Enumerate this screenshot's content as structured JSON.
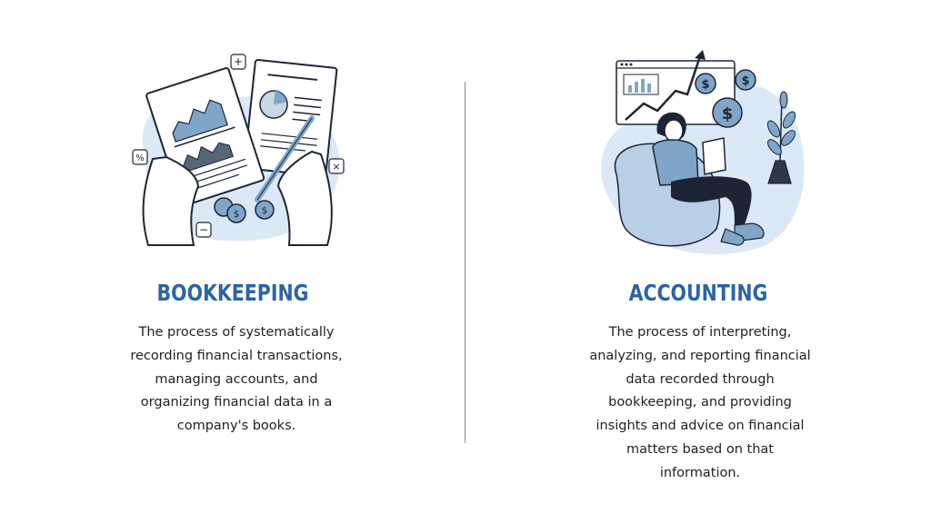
{
  "bookkeeping": {
    "title": "BOOKKEEPING",
    "description": "The process of systematically recording financial transactions, managing accounts, and organizing financial data in a company's books."
  },
  "accounting": {
    "title": "ACCOUNTING",
    "description": "The process of interpreting, analyzing, and reporting financial data recorded through bookkeeping, and providing insights and advice on financial matters based on that information."
  },
  "colors": {
    "title": "#2a64a6",
    "light_blue": "#dbe9f6",
    "mid_blue": "#7fa6c9",
    "dark_navy": "#1d2535",
    "divider": "#8a8a8a"
  },
  "icons": {
    "bookkeeping_illustration": "hands-holding-reports-icon",
    "accounting_illustration": "man-with-laptop-and-growth-chart-icon"
  }
}
